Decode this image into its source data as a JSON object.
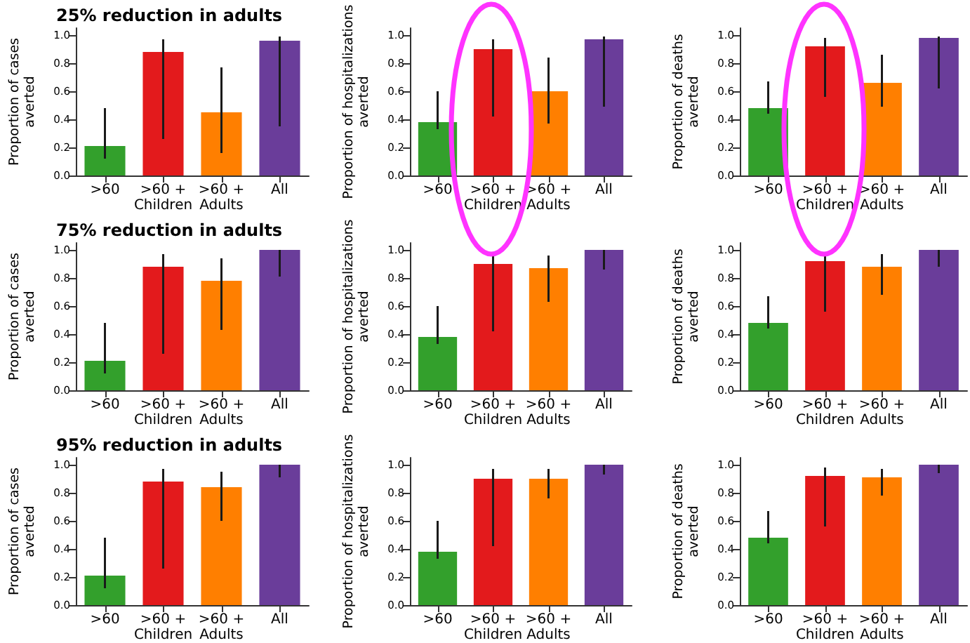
{
  "chart_data": [
    {
      "type": "bar",
      "title": "25% reduction in adults",
      "ylabel": "Proportion of cases\naverted",
      "categories": [
        ">60",
        ">60 +\nChildren",
        ">60 +\nAdults",
        "All"
      ],
      "values": [
        0.21,
        0.88,
        0.45,
        0.96
      ],
      "errors": [
        [
          0.12,
          0.48
        ],
        [
          0.26,
          0.97
        ],
        [
          0.16,
          0.77
        ],
        [
          0.35,
          0.99
        ]
      ],
      "colors": [
        "#33a02c",
        "#e31a1c",
        "#ff7f00",
        "#6a3d9a"
      ],
      "ylim": [
        0,
        1.05
      ],
      "yticks": [
        {
          "value": 0,
          "label": "0.0"
        },
        {
          "value": 0.2,
          "label": "0.2"
        },
        {
          "value": 0.4,
          "label": "0.4"
        },
        {
          "value": 0.6,
          "label": "0.6"
        },
        {
          "value": 0.8,
          "label": "0.8"
        },
        {
          "value": 1,
          "label": "1.0"
        }
      ],
      "grid": false
    },
    {
      "type": "bar",
      "ylabel": "Proportion of hospitalizations\naverted",
      "categories": [
        ">60",
        ">60 +\nChildren",
        ">60 +\nAdults",
        "All"
      ],
      "values": [
        0.38,
        0.9,
        0.6,
        0.97
      ],
      "errors": [
        [
          0.33,
          0.6
        ],
        [
          0.42,
          0.97
        ],
        [
          0.37,
          0.84
        ],
        [
          0.49,
          0.99
        ]
      ],
      "colors": [
        "#33a02c",
        "#e31a1c",
        "#ff7f00",
        "#6a3d9a"
      ],
      "ylim": [
        0,
        1.05
      ],
      "yticks": [
        {
          "value": 0,
          "label": "0.0"
        },
        {
          "value": 0.2,
          "label": "0.2"
        },
        {
          "value": 0.4,
          "label": "0.4"
        },
        {
          "value": 0.6,
          "label": "0.6"
        },
        {
          "value": 0.8,
          "label": "0.8"
        },
        {
          "value": 1,
          "label": "1.0"
        }
      ],
      "grid": false
    },
    {
      "type": "bar",
      "ylabel": "Proportion of deaths\naverted",
      "categories": [
        ">60",
        ">60 +\nChildren",
        ">60 +\nAdults",
        "All"
      ],
      "values": [
        0.48,
        0.92,
        0.66,
        0.98
      ],
      "errors": [
        [
          0.44,
          0.67
        ],
        [
          0.56,
          0.98
        ],
        [
          0.49,
          0.86
        ],
        [
          0.62,
          0.99
        ]
      ],
      "colors": [
        "#33a02c",
        "#e31a1c",
        "#ff7f00",
        "#6a3d9a"
      ],
      "ylim": [
        0,
        1.05
      ],
      "yticks": [
        {
          "value": 0,
          "label": "0.0"
        },
        {
          "value": 0.2,
          "label": "0.2"
        },
        {
          "value": 0.4,
          "label": "0.4"
        },
        {
          "value": 0.6,
          "label": "0.6"
        },
        {
          "value": 0.8,
          "label": "0.8"
        },
        {
          "value": 1,
          "label": "1.0"
        }
      ],
      "grid": false
    },
    {
      "type": "bar",
      "title": "75% reduction in adults",
      "ylabel": "Proportion of cases\naverted",
      "categories": [
        ">60",
        ">60 +\nChildren",
        ">60 +\nAdults",
        "All"
      ],
      "values": [
        0.21,
        0.88,
        0.78,
        1.0
      ],
      "errors": [
        [
          0.12,
          0.48
        ],
        [
          0.26,
          0.97
        ],
        [
          0.43,
          0.94
        ],
        [
          0.81,
          1.0
        ]
      ],
      "colors": [
        "#33a02c",
        "#e31a1c",
        "#ff7f00",
        "#6a3d9a"
      ],
      "ylim": [
        0,
        1.05
      ],
      "yticks": [
        {
          "value": 0,
          "label": "0.0"
        },
        {
          "value": 0.2,
          "label": "0.2"
        },
        {
          "value": 0.4,
          "label": "0.4"
        },
        {
          "value": 0.6,
          "label": "0.6"
        },
        {
          "value": 0.8,
          "label": "0.8"
        },
        {
          "value": 1,
          "label": "1.0"
        }
      ],
      "grid": false
    },
    {
      "type": "bar",
      "ylabel": "Proportion of hospitalizations\naverted",
      "categories": [
        ">60",
        ">60 +\nChildren",
        ">60 +\nAdults",
        "All"
      ],
      "values": [
        0.38,
        0.9,
        0.87,
        1.0
      ],
      "errors": [
        [
          0.33,
          0.6
        ],
        [
          0.42,
          0.97
        ],
        [
          0.63,
          0.96
        ],
        [
          0.86,
          1.0
        ]
      ],
      "colors": [
        "#33a02c",
        "#e31a1c",
        "#ff7f00",
        "#6a3d9a"
      ],
      "ylim": [
        0,
        1.05
      ],
      "yticks": [
        {
          "value": 0,
          "label": "0.0"
        },
        {
          "value": 0.2,
          "label": "0.2"
        },
        {
          "value": 0.4,
          "label": "0.4"
        },
        {
          "value": 0.6,
          "label": "0.6"
        },
        {
          "value": 0.8,
          "label": "0.8"
        },
        {
          "value": 1,
          "label": "1.0"
        }
      ],
      "grid": false
    },
    {
      "type": "bar",
      "ylabel": "Proportion of deaths\naverted",
      "categories": [
        ">60",
        ">60 +\nChildren",
        ">60 +\nAdults",
        "All"
      ],
      "values": [
        0.48,
        0.92,
        0.88,
        1.0
      ],
      "errors": [
        [
          0.44,
          0.67
        ],
        [
          0.56,
          0.98
        ],
        [
          0.68,
          0.97
        ],
        [
          0.88,
          1.0
        ]
      ],
      "colors": [
        "#33a02c",
        "#e31a1c",
        "#ff7f00",
        "#6a3d9a"
      ],
      "ylim": [
        0,
        1.05
      ],
      "yticks": [
        {
          "value": 0,
          "label": "0.0"
        },
        {
          "value": 0.2,
          "label": "0.2"
        },
        {
          "value": 0.4,
          "label": "0.4"
        },
        {
          "value": 0.6,
          "label": "0.6"
        },
        {
          "value": 0.8,
          "label": "0.8"
        },
        {
          "value": 1,
          "label": "1.0"
        }
      ],
      "grid": false
    },
    {
      "type": "bar",
      "title": "95% reduction in adults",
      "ylabel": "Proportion of cases\naverted",
      "categories": [
        ">60",
        ">60 +\nChildren",
        ">60 +\nAdults",
        "All"
      ],
      "values": [
        0.21,
        0.88,
        0.84,
        1.0
      ],
      "errors": [
        [
          0.12,
          0.48
        ],
        [
          0.26,
          0.97
        ],
        [
          0.6,
          0.95
        ],
        [
          0.91,
          1.0
        ]
      ],
      "colors": [
        "#33a02c",
        "#e31a1c",
        "#ff7f00",
        "#6a3d9a"
      ],
      "ylim": [
        0,
        1.05
      ],
      "yticks": [
        {
          "value": 0,
          "label": "0.0"
        },
        {
          "value": 0.2,
          "label": "0.2"
        },
        {
          "value": 0.4,
          "label": "0.4"
        },
        {
          "value": 0.6,
          "label": "0.6"
        },
        {
          "value": 0.8,
          "label": "0.8"
        },
        {
          "value": 1,
          "label": "1.0"
        }
      ],
      "grid": false
    },
    {
      "type": "bar",
      "ylabel": "Proportion of hospitalizations\naverted",
      "categories": [
        ">60",
        ">60 +\nChildren",
        ">60 +\nAdults",
        "All"
      ],
      "values": [
        0.38,
        0.9,
        0.9,
        1.0
      ],
      "errors": [
        [
          0.33,
          0.6
        ],
        [
          0.42,
          0.97
        ],
        [
          0.76,
          0.97
        ],
        [
          0.93,
          1.0
        ]
      ],
      "colors": [
        "#33a02c",
        "#e31a1c",
        "#ff7f00",
        "#6a3d9a"
      ],
      "ylim": [
        0,
        1.05
      ],
      "yticks": [
        {
          "value": 0,
          "label": "0.0"
        },
        {
          "value": 0.2,
          "label": "0.2"
        },
        {
          "value": 0.4,
          "label": "0.4"
        },
        {
          "value": 0.6,
          "label": "0.6"
        },
        {
          "value": 0.8,
          "label": "0.8"
        },
        {
          "value": 1,
          "label": "1.0"
        }
      ],
      "grid": false
    },
    {
      "type": "bar",
      "ylabel": "Proportion of deaths\naverted",
      "categories": [
        ">60",
        ">60 +\nChildren",
        ">60 +\nAdults",
        "All"
      ],
      "values": [
        0.48,
        0.92,
        0.91,
        1.0
      ],
      "errors": [
        [
          0.44,
          0.67
        ],
        [
          0.56,
          0.98
        ],
        [
          0.78,
          0.97
        ],
        [
          0.94,
          1.0
        ]
      ],
      "colors": [
        "#33a02c",
        "#e31a1c",
        "#ff7f00",
        "#6a3d9a"
      ],
      "ylim": [
        0,
        1.05
      ],
      "yticks": [
        {
          "value": 0,
          "label": "0.0"
        },
        {
          "value": 0.2,
          "label": "0.2"
        },
        {
          "value": 0.4,
          "label": "0.4"
        },
        {
          "value": 0.6,
          "label": "0.6"
        },
        {
          "value": 0.8,
          "label": "0.8"
        },
        {
          "value": 1,
          "label": "1.0"
        }
      ],
      "grid": false
    }
  ]
}
